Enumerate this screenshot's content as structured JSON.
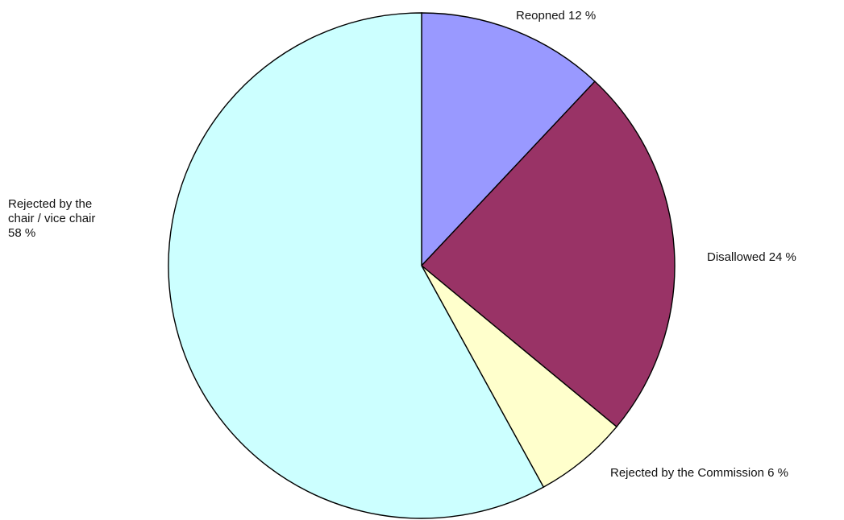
{
  "chart_data": {
    "type": "pie",
    "categories": [
      "Reopned",
      "Disallowed",
      "Rejected by the Commission",
      "Rejected by the chair / vice chair"
    ],
    "values": [
      12,
      24,
      6,
      58
    ],
    "unit": "%",
    "colors": [
      "#9999ff",
      "#993366",
      "#ffffcc",
      "#ccffff"
    ],
    "labels": [
      {
        "lines": [
          "Reopned 12 %"
        ],
        "anchor": "start"
      },
      {
        "lines": [
          "Disallowed 24 %"
        ],
        "anchor": "start"
      },
      {
        "lines": [
          "Rejected by the Commission 6 %"
        ],
        "anchor": "start"
      },
      {
        "lines": [
          "Rejected by the",
          "chair / vice chair",
          "58 %"
        ],
        "anchor": "start"
      }
    ],
    "start_angle_deg": 0,
    "direction": "clockwise",
    "legend": "none"
  }
}
